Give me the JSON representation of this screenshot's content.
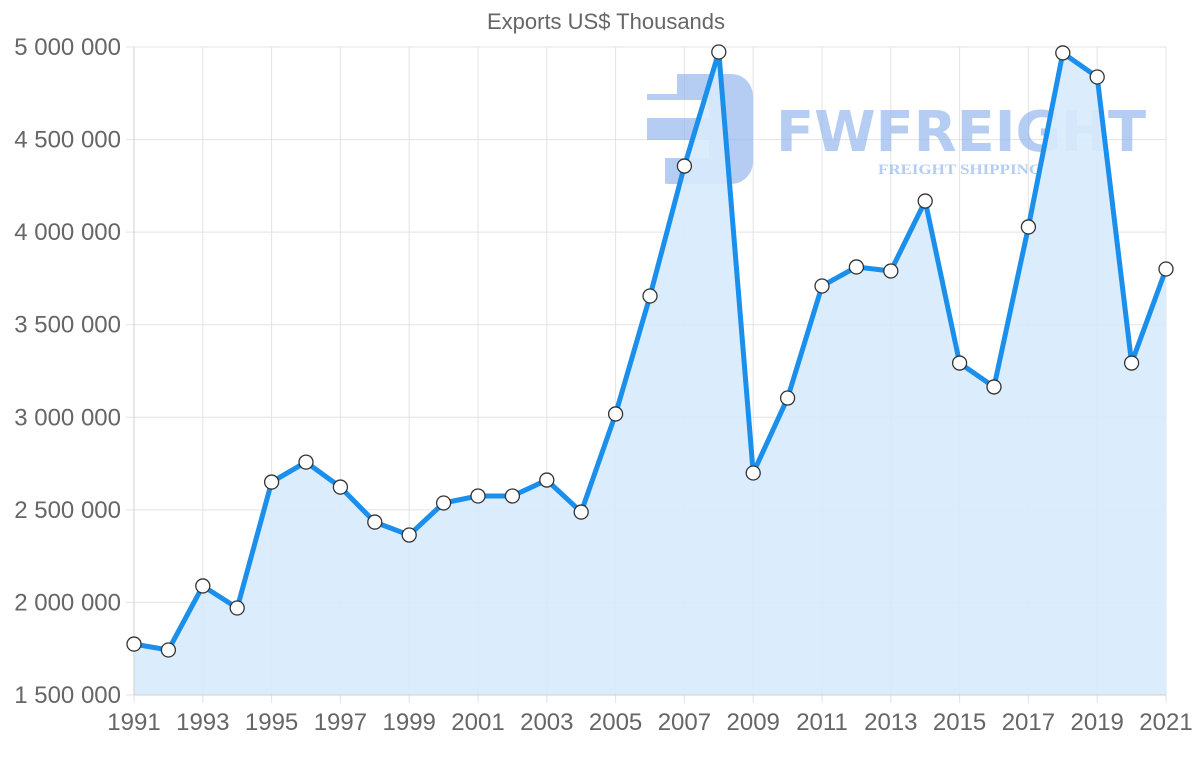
{
  "chart_data": {
    "type": "line",
    "title": "Exports US$ Thousands",
    "xlabel": "",
    "ylabel": "",
    "x": [
      1991,
      1992,
      1993,
      1994,
      1995,
      1996,
      1997,
      1998,
      1999,
      2000,
      2001,
      2002,
      2003,
      2004,
      2005,
      2006,
      2007,
      2008,
      2009,
      2010,
      2011,
      2012,
      2013,
      2014,
      2015,
      2016,
      2017,
      2018,
      2019,
      2020,
      2021
    ],
    "x_tick_labels": [
      "1991",
      "1993",
      "1995",
      "1997",
      "1999",
      "2001",
      "2003",
      "2005",
      "2007",
      "2009",
      "2011",
      "2013",
      "2015",
      "2017",
      "2019",
      "2021"
    ],
    "series": [
      {
        "name": "Exports US$ Thousands",
        "values": [
          1775000,
          1743000,
          2089000,
          1970000,
          2650000,
          2758000,
          2623000,
          2434000,
          2364000,
          2537000,
          2575000,
          2575000,
          2661000,
          2488000,
          3018000,
          3655000,
          4357000,
          4973000,
          2699000,
          3104000,
          3709000,
          3812000,
          3790000,
          4168000,
          3293000,
          3164000,
          4028000,
          4968000,
          4838000,
          3293000,
          3801000
        ]
      }
    ],
    "ylim": [
      1500000,
      5000000
    ],
    "y_ticks": [
      1500000,
      2000000,
      2500000,
      3000000,
      3500000,
      4000000,
      4500000,
      5000000
    ],
    "y_tick_labels": [
      "1 500 000",
      "2 000 000",
      "2 500 000",
      "3 000 000",
      "3 500 000",
      "4 000 000",
      "4 500 000",
      "5 000 000"
    ],
    "grid": true,
    "legend": "none",
    "fill_area": true
  },
  "colors": {
    "line": "#1a8fec",
    "fill": "#d7eafc",
    "watermark": "#8fb3ee"
  },
  "watermark": {
    "brand": "FWFREIGHT",
    "tagline": "FREIGHT SHIPPING"
  }
}
